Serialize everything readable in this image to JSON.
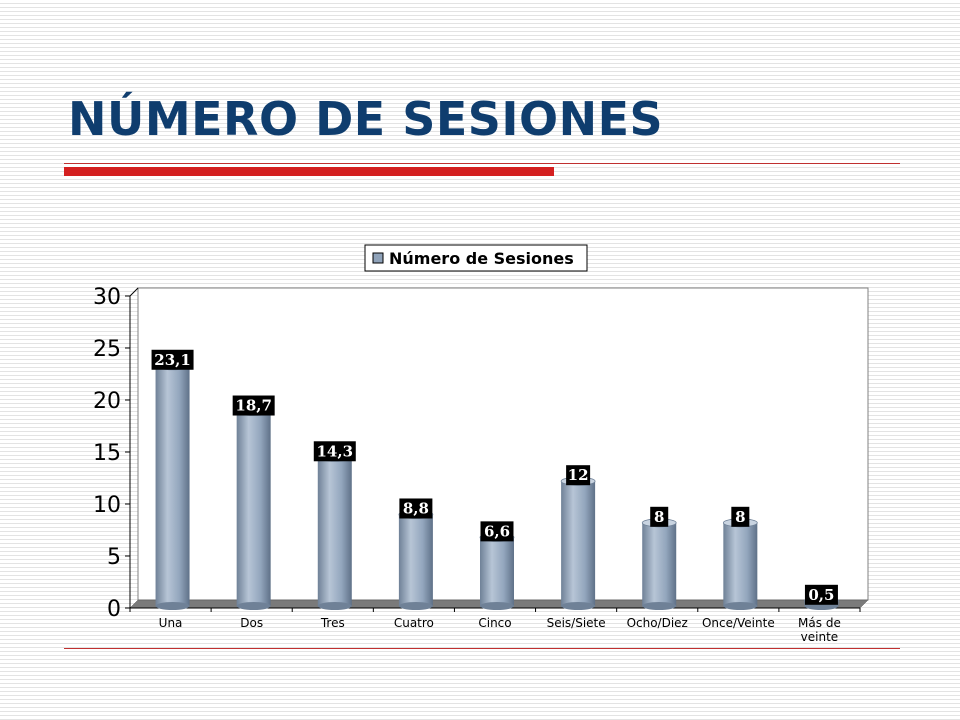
{
  "slide": {
    "title": "NÚMERO DE SESIONES"
  },
  "colors": {
    "title": "#0f3d6e",
    "accent_rule": "#d42020",
    "bar": "#8fa2b9",
    "label_bg": "#000000",
    "label_text": "#ffffff"
  },
  "chart_data": {
    "type": "bar",
    "style": "3d-cylinder",
    "legend": {
      "entries": [
        "Número de Sesiones"
      ],
      "placement": "top-center"
    },
    "categories": [
      "Una",
      "Dos",
      "Tres",
      "Cuatro",
      "Cinco",
      "Seis/Siete",
      "Ocho/Diez",
      "Once/Veinte",
      "Más de veinte"
    ],
    "series": [
      {
        "name": "Número de Sesiones",
        "values": [
          23.1,
          18.7,
          14.3,
          8.8,
          6.6,
          12,
          8,
          8,
          0.5
        ],
        "labels": [
          "23,1",
          "18,7",
          "14,3",
          "8,8",
          "6,6",
          "12",
          "8",
          "8",
          "0,5"
        ]
      }
    ],
    "ylim": [
      0,
      30
    ],
    "yticks": [
      0,
      5,
      10,
      15,
      20,
      25,
      30
    ],
    "grid": false
  }
}
